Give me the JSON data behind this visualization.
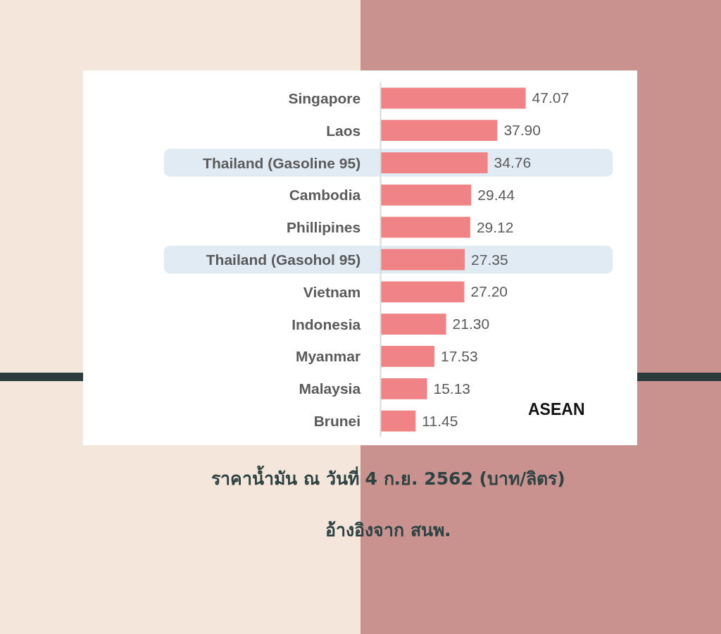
{
  "chart_data": {
    "type": "bar",
    "orientation": "horizontal",
    "title": "ราคาน้ำมัน ณ วันที่ 4 ก.ย. 2562 (บาท/ลิตร)",
    "annotations": [
      "ASEAN",
      "อ้างอิงจาก สนพ."
    ],
    "categories": [
      "Singapore",
      "Laos",
      "Thailand (Gasoline 95)",
      "Cambodia",
      "Phillipines",
      "Thailand (Gasohol 95)",
      "Vietnam",
      "Indonesia",
      "Myanmar",
      "Malaysia",
      "Brunei"
    ],
    "values": [
      47.07,
      37.9,
      34.76,
      29.44,
      29.12,
      27.35,
      27.2,
      21.3,
      17.53,
      15.13,
      11.45
    ],
    "value_labels": [
      "47.07",
      "37.90",
      "34.76",
      "29.44",
      "29.12",
      "27.35",
      "27.20",
      "21.30",
      "17.53",
      "15.13",
      "11.45"
    ],
    "color": "#ef8385",
    "bands": [
      {
        "axis": "y",
        "from": "Thailand (Gasoline 95)",
        "to": "Thailand (Gasoline 95)",
        "color": "#e1ebf3"
      },
      {
        "axis": "y",
        "from": "Thailand (Gasohol 95)",
        "to": "Thailand (Gasohol 95)",
        "color": "#e1ebf3"
      }
    ]
  }
}
